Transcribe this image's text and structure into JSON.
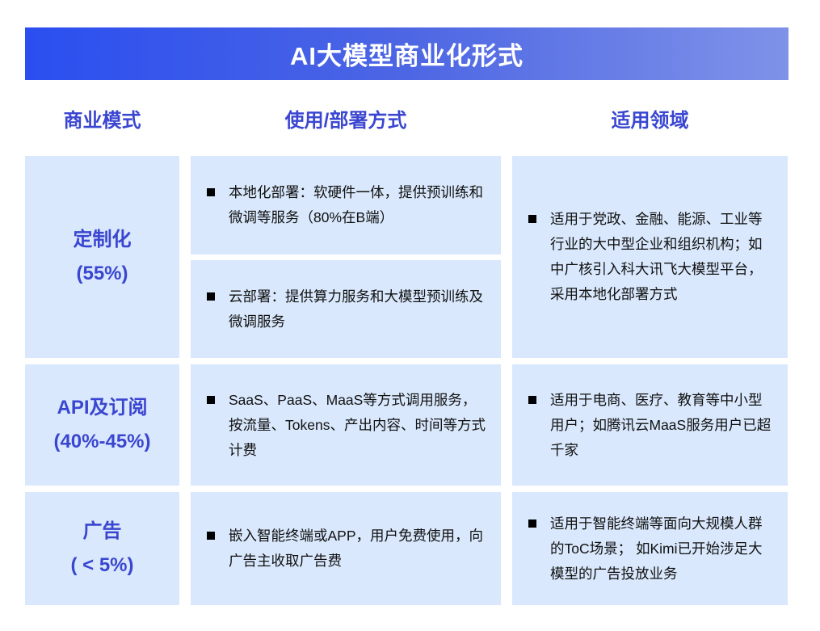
{
  "title": "AI大模型商业化形式",
  "headers": {
    "mode": "商业模式",
    "deploy": "使用/部署方式",
    "domain": "适用领域"
  },
  "rows": [
    {
      "mode": "定制化",
      "share": "(55%)",
      "deploy": [
        "本地化部署：软硬件一体，提供预训练和微调等服务（80%在B端）",
        "云部署：提供算力服务和大模型预训练及微调服务"
      ],
      "domain": "适用于党政、金融、能源、工业等行业的大中型企业和组织机构；如中广核引入科大讯飞大模型平台，采用本地化部署方式"
    },
    {
      "mode": "API及订阅",
      "share": "(40%-45%)",
      "deploy": [
        "SaaS、PaaS、MaaS等方式调用服务，按流量、Tokens、产出内容、时间等方式计费"
      ],
      "domain": "适用于电商、医疗、教育等中小型用户；如腾讯云MaaS服务用户已超千家"
    },
    {
      "mode": "广告",
      "share": "( < 5%)",
      "deploy": [
        "嵌入智能终端或APP，用户免费使用，向广告主收取广告费"
      ],
      "domain": "适用于智能终端等面向大规模人群的ToC场景； 如Kimi已开始涉足大模型的广告投放业务"
    }
  ],
  "colors": {
    "accent": "#3a46d0",
    "cell_bg": "#d9e8fc",
    "banner_start": "#2a4ef0",
    "banner_end": "#7f92e8"
  }
}
